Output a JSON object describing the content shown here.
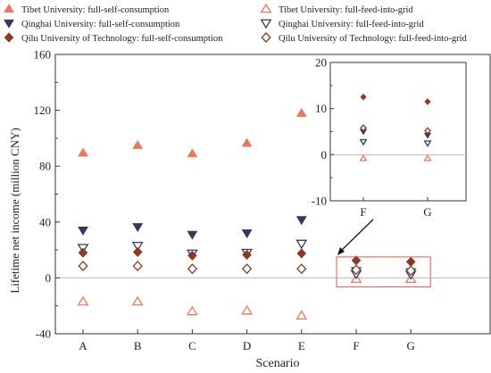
{
  "chart_data": {
    "type": "scatter",
    "xlabel": "Scenario",
    "ylabel": "Lifetime net income  (million CNY)",
    "categories": [
      "A",
      "B",
      "C",
      "D",
      "E",
      "F",
      "G"
    ],
    "ylim": [
      -40,
      160
    ],
    "yticks": [
      -40,
      0,
      40,
      80,
      120,
      160
    ],
    "zero_line": true,
    "grid": false,
    "legend_position": "top",
    "series": [
      {
        "name": "Tibet University: full-self-consumption",
        "marker": "triangle-up",
        "filled": true,
        "color": "#E8795A",
        "values": [
          89.5,
          95,
          89,
          96.5,
          118,
          -0.8,
          -0.8
        ]
      },
      {
        "name": "Tibet University: full-feed-into-grid",
        "marker": "triangle-up",
        "filled": false,
        "color": "#E8795A",
        "values": [
          -17,
          -17,
          -24,
          -23.5,
          -27,
          -0.8,
          -0.8
        ]
      },
      {
        "name": "Qinghai University: full-self-consumption",
        "marker": "triangle-down",
        "filled": true,
        "color": "#343A5C",
        "values": [
          34,
          36.5,
          31,
          32,
          41.5,
          5,
          4.2
        ]
      },
      {
        "name": "Qinghai University: full-feed-into-grid",
        "marker": "triangle-down",
        "filled": false,
        "color": "#343A5C",
        "values": [
          21.5,
          23,
          17.5,
          18,
          24.5,
          2.8,
          2.5
        ]
      },
      {
        "name": "Qilu University of Technology: full-self-consumption",
        "marker": "diamond",
        "filled": true,
        "color": "#8B3A22",
        "values": [
          18,
          18.5,
          16,
          16.5,
          17.5,
          12.5,
          11.5
        ]
      },
      {
        "name": "Qilu University of Technology: full-feed-into-grid",
        "marker": "diamond",
        "filled": false,
        "color": "#8B3A22",
        "values": [
          8.5,
          8.5,
          6.5,
          6.5,
          6.5,
          5.8,
          5.2
        ]
      }
    ],
    "inset": {
      "categories": [
        "F",
        "G"
      ],
      "ylim": [
        -10,
        20
      ],
      "yticks": [
        -10,
        0,
        10,
        20
      ]
    }
  }
}
